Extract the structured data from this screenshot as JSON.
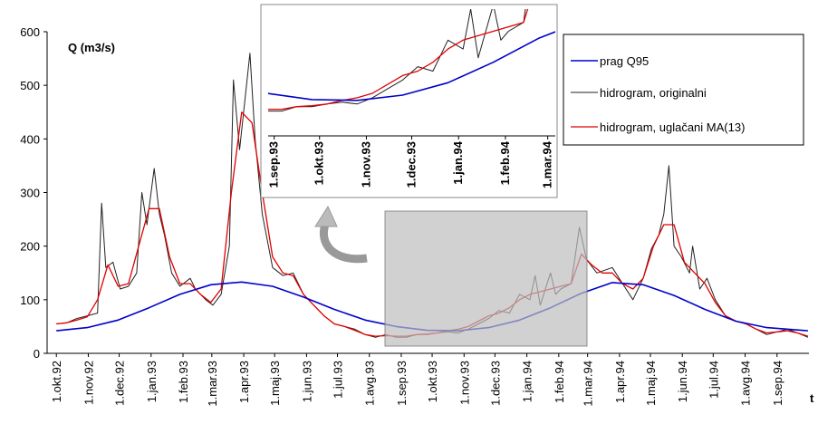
{
  "chart_data": {
    "type": "line",
    "y_label": "Q (m3/s)",
    "x_label": "t",
    "xlim": [
      -9,
      731
    ],
    "ylim": [
      0,
      600
    ],
    "yticks": [
      0,
      100,
      200,
      300,
      400,
      500,
      600
    ],
    "xticks": [
      {
        "value": 0,
        "label": "1.okt.92"
      },
      {
        "value": 31,
        "label": "1.nov.92"
      },
      {
        "value": 61,
        "label": "1.dec.92"
      },
      {
        "value": 92,
        "label": "1.jan.93"
      },
      {
        "value": 123,
        "label": "1.feb.93"
      },
      {
        "value": 151,
        "label": "1.mar.93"
      },
      {
        "value": 182,
        "label": "1.apr.93"
      },
      {
        "value": 212,
        "label": "1.maj.93"
      },
      {
        "value": 243,
        "label": "1.jun.93"
      },
      {
        "value": 273,
        "label": "1.jul.93"
      },
      {
        "value": 304,
        "label": "1.avg.93"
      },
      {
        "value": 335,
        "label": "1.sep.93"
      },
      {
        "value": 365,
        "label": "1.okt.93"
      },
      {
        "value": 396,
        "label": "1.nov.93"
      },
      {
        "value": 426,
        "label": "1.dec.93"
      },
      {
        "value": 457,
        "label": "1.jan.94"
      },
      {
        "value": 488,
        "label": "1.feb.94"
      },
      {
        "value": 516,
        "label": "1.mar.94"
      },
      {
        "value": 547,
        "label": "1.apr.94"
      },
      {
        "value": 577,
        "label": "1.maj.94"
      },
      {
        "value": 608,
        "label": "1.jun.94"
      },
      {
        "value": 638,
        "label": "1.jul.94"
      },
      {
        "value": 669,
        "label": "1.avg.94"
      },
      {
        "value": 700,
        "label": "1.sep.94"
      }
    ],
    "series": [
      {
        "name": "prag Q95",
        "color": "#0000cc",
        "x": [
          0,
          30,
          60,
          90,
          120,
          150,
          180,
          210,
          240,
          270,
          300,
          330,
          360,
          390,
          420,
          450,
          480,
          510,
          540,
          570,
          600,
          630,
          660,
          690,
          730
        ],
        "values": [
          42,
          48,
          62,
          85,
          110,
          128,
          133,
          125,
          105,
          82,
          62,
          50,
          43,
          42,
          48,
          62,
          85,
          112,
          132,
          128,
          108,
          82,
          60,
          48,
          42
        ]
      },
      {
        "name": "hidrogram, originalni",
        "color": "#222222",
        "x": [
          0,
          10,
          20,
          30,
          40,
          44,
          48,
          55,
          62,
          70,
          78,
          83,
          88,
          95,
          100,
          105,
          112,
          120,
          130,
          135,
          145,
          152,
          160,
          168,
          172,
          178,
          183,
          188,
          193,
          200,
          210,
          220,
          230,
          240,
          250,
          260,
          270,
          280,
          290,
          300,
          310,
          320,
          330,
          340,
          350,
          360,
          370,
          380,
          390,
          400,
          410,
          420,
          430,
          440,
          450,
          460,
          465,
          470,
          480,
          485,
          490,
          500,
          508,
          515,
          525,
          540,
          550,
          560,
          570,
          578,
          585,
          590,
          595,
          600,
          607,
          615,
          618,
          625,
          632,
          640,
          650,
          660,
          670,
          680,
          690,
          700,
          710,
          720,
          730
        ],
        "values": [
          55,
          57,
          65,
          70,
          75,
          280,
          160,
          170,
          120,
          125,
          150,
          300,
          240,
          345,
          260,
          220,
          150,
          125,
          140,
          120,
          100,
          90,
          110,
          200,
          510,
          380,
          470,
          560,
          400,
          260,
          160,
          145,
          150,
          110,
          90,
          70,
          55,
          50,
          45,
          35,
          30,
          35,
          30,
          30,
          35,
          35,
          38,
          40,
          38,
          45,
          55,
          65,
          80,
          75,
          110,
          100,
          145,
          90,
          150,
          110,
          120,
          130,
          235,
          175,
          150,
          160,
          130,
          100,
          140,
          195,
          220,
          260,
          350,
          200,
          180,
          150,
          200,
          120,
          140,
          100,
          70,
          60,
          55,
          45,
          35,
          40,
          45,
          38,
          30
        ]
      },
      {
        "name": "hidrogram, uglačani MA(13)",
        "color": "#e00000",
        "x": [
          0,
          10,
          20,
          30,
          40,
          50,
          60,
          70,
          80,
          90,
          100,
          110,
          120,
          130,
          140,
          150,
          160,
          170,
          180,
          190,
          200,
          210,
          220,
          230,
          240,
          250,
          260,
          270,
          280,
          290,
          300,
          310,
          320,
          330,
          340,
          350,
          360,
          370,
          380,
          390,
          400,
          410,
          420,
          430,
          440,
          450,
          460,
          470,
          480,
          490,
          500,
          510,
          520,
          530,
          540,
          550,
          560,
          570,
          580,
          590,
          600,
          610,
          620,
          630,
          640,
          650,
          660,
          670,
          680,
          690,
          700,
          710,
          720,
          730
        ],
        "values": [
          55,
          57,
          62,
          68,
          100,
          165,
          125,
          130,
          200,
          270,
          270,
          180,
          130,
          130,
          110,
          95,
          120,
          300,
          450,
          430,
          300,
          180,
          150,
          145,
          110,
          90,
          70,
          55,
          50,
          43,
          35,
          32,
          33,
          32,
          32,
          35,
          36,
          38,
          42,
          45,
          50,
          60,
          70,
          75,
          85,
          100,
          110,
          115,
          120,
          125,
          130,
          185,
          165,
          150,
          150,
          130,
          120,
          140,
          200,
          240,
          240,
          170,
          150,
          130,
          95,
          70,
          60,
          55,
          45,
          38,
          40,
          42,
          38,
          32
        ]
      }
    ],
    "inset": {
      "xlim": [
        331,
        521
      ],
      "ylim": [
        2,
        145
      ],
      "xticks": [
        {
          "value": 335,
          "label": "1.sep.93"
        },
        {
          "value": 365,
          "label": "1.okt.93"
        },
        {
          "value": 396,
          "label": "1.nov.93"
        },
        {
          "value": 426,
          "label": "1.dec.93"
        },
        {
          "value": 457,
          "label": "1.jan.94"
        },
        {
          "value": 488,
          "label": "1.feb.94"
        },
        {
          "value": 516,
          "label": "1.mar.94"
        }
      ]
    }
  }
}
